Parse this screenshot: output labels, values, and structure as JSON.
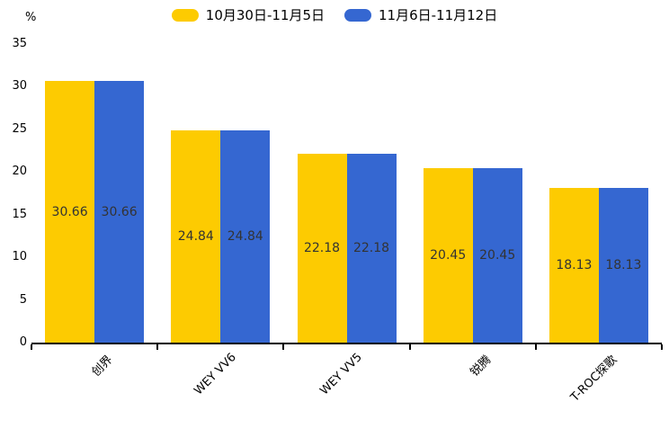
{
  "chart_data": {
    "type": "bar",
    "categories": [
      "创界",
      "WEY VV6",
      "WEY VV5",
      "锐腾",
      "T-ROC探歌"
    ],
    "series": [
      {
        "name": "10月30日-11月5日",
        "color": "#FDCB01",
        "values": [
          30.66,
          24.84,
          22.18,
          20.45,
          18.13
        ]
      },
      {
        "name": "11月6日-11月12日",
        "color": "#3567D1",
        "values": [
          30.66,
          24.84,
          22.18,
          20.45,
          18.13
        ]
      }
    ],
    "title": "",
    "xlabel": "",
    "ylabel": "%",
    "ylim": [
      0,
      35
    ],
    "yticks": [
      0,
      5,
      10,
      15,
      20,
      25,
      30,
      35
    ],
    "value_label_decimals": 2,
    "value_label_color": "#333333",
    "axis_color": "#000000",
    "legend_position": "top",
    "grid": false
  }
}
